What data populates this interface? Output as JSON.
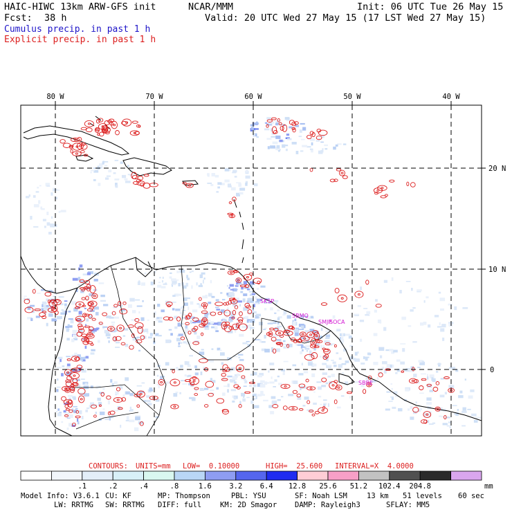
{
  "header": {
    "model_title": "HAIC-HIWC 13km ARW-GFS init",
    "org": "NCAR/MMM",
    "init": "Init: 06 UTC Tue 26 May 15",
    "fcst_label": "Fcst:",
    "fcst_value": "38 h",
    "valid": "Valid: 20 UTC Wed 27 May 15 (17 LST Wed 27 May 15)",
    "legend_cumulus": "Cumulus precip. in past 1 h",
    "legend_explicit": "Explicit precip. in past 1 h"
  },
  "colors": {
    "cumulus": "#1e14c8",
    "explicit": "#dc1e1e",
    "station": "#d214d2"
  },
  "map": {
    "lon_labels": [
      "80 W",
      "70 W",
      "60 W",
      "50 W",
      "40 W"
    ],
    "lat_labels": [
      "20 N",
      "10 N",
      "0"
    ],
    "stations": [
      "SKSP",
      "SBMQ",
      "SMJP",
      "SOCA",
      "SBBE"
    ]
  },
  "contours": {
    "label": "CONTOURS:",
    "units": "UNITS=mm",
    "low": "LOW=  0.10000",
    "high": "HIGH=  25.600",
    "interval": "INTERVAL=X  4.0000"
  },
  "colorbar": {
    "colors": [
      "#ffffff",
      "#f2f6fb",
      "#e3eef9",
      "#d8f0f8",
      "#d9f7f0",
      "#b9d6f6",
      "#8e9df2",
      "#5566ee",
      "#1f2cf0",
      "#ffcdd5",
      "#f79fc7",
      "#c2c2c2",
      "#505050",
      "#2a2a2a",
      "#d9a6ee"
    ],
    "labels": [
      ".1",
      ".2",
      ".4",
      ".8",
      "1.6",
      "3.2",
      "6.4",
      "12.8",
      "25.6",
      "51.2",
      "102.4",
      "204.8"
    ],
    "units": "mm"
  },
  "model_info": {
    "line1": [
      "Model Info: V3.6.1",
      "CU: KF",
      "MP: Thompson",
      "PBL: YSU",
      "SF: Noah LSM",
      "13 km",
      "51 levels",
      "60 sec"
    ],
    "line2": [
      "LW: RRTMG",
      "SW: RRTMG",
      "DIFF: full",
      "KM: 2D Smagor",
      "DAMP: Rayleigh3",
      "SFLAY: MM5"
    ]
  }
}
